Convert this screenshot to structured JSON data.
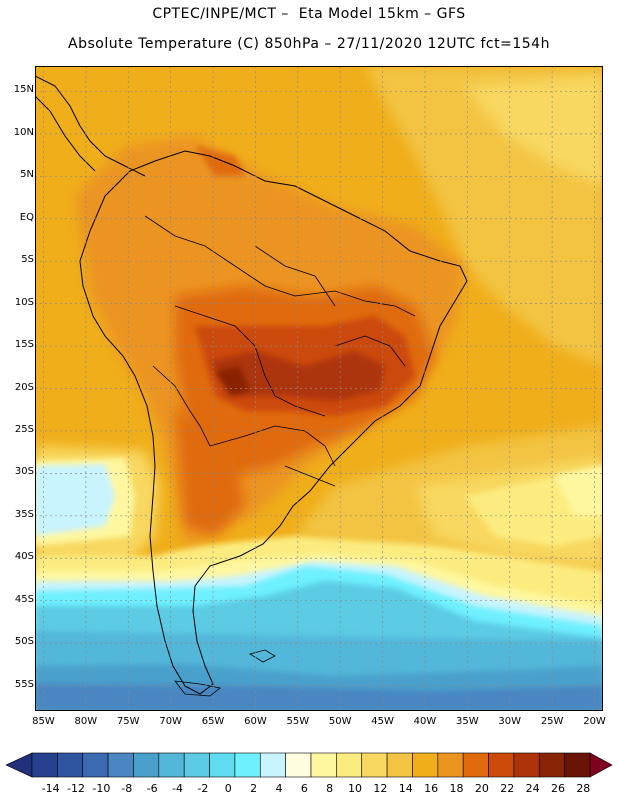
{
  "header": {
    "line1": "CPTEC/INPE/MCT –  Eta Model 15km – GFS",
    "line2": "Absolute Temperature (C) 850hPa – 27/11/2020 12UTC fct=154h"
  },
  "map": {
    "lat_labels": [
      "15N",
      "10N",
      "5N",
      "EQ",
      "5S",
      "10S",
      "15S",
      "20S",
      "25S",
      "30S",
      "35S",
      "40S",
      "45S",
      "50S",
      "55S"
    ],
    "lon_labels": [
      "85W",
      "80W",
      "75W",
      "70W",
      "65W",
      "60W",
      "55W",
      "50W",
      "45W",
      "40W",
      "35W",
      "30W",
      "25W",
      "20W"
    ],
    "lat_range": [
      18,
      -58
    ],
    "lon_range": [
      -86,
      -19
    ],
    "field": "Absolute Temperature (C) 850hPa"
  },
  "colorbar": {
    "labels": [
      "-14",
      "-12",
      "-10",
      "-8",
      "-6",
      "-4",
      "-2",
      "0",
      "2",
      "4",
      "6",
      "8",
      "10",
      "12",
      "14",
      "16",
      "18",
      "20",
      "22",
      "24",
      "26",
      "28"
    ],
    "colors": [
      "#26418f",
      "#2f55a0",
      "#3a6ab0",
      "#4a86c2",
      "#4aa0cc",
      "#53b7da",
      "#5ccbe4",
      "#60dcf0",
      "#6ef0ff",
      "#c8f4ff",
      "#fffce0",
      "#fff7a0",
      "#fcec80",
      "#f8d860",
      "#f3c443",
      "#f0ae1a",
      "#ec9420",
      "#e06a0e",
      "#cc4a0a",
      "#ad3408",
      "#8a2406",
      "#6a1406"
    ],
    "under_color": "#20307a",
    "over_color": "#800020"
  }
}
